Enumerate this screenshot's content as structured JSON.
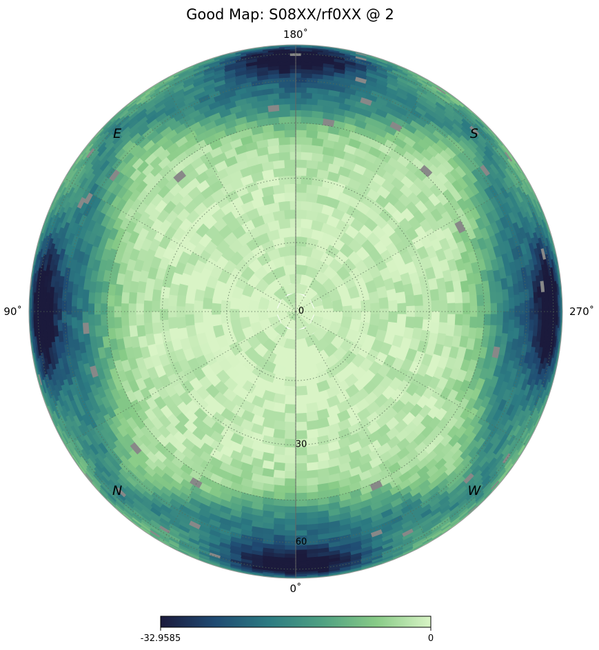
{
  "chart_data": {
    "type": "heatmap",
    "projection": "orthographic-polar",
    "title": "Good Map: S08XX/rf0XX @ 2",
    "angle_tick_labels": [
      {
        "angle_deg": 0,
        "label": "0˚"
      },
      {
        "angle_deg": 90,
        "label": "90˚"
      },
      {
        "angle_deg": 180,
        "label": "180˚"
      },
      {
        "angle_deg": 270,
        "label": "270˚"
      }
    ],
    "direction_labels": [
      {
        "angle_deg": 135,
        "label": "E"
      },
      {
        "angle_deg": 225,
        "label": "S"
      },
      {
        "angle_deg": 315,
        "label": "W"
      },
      {
        "angle_deg": 45,
        "label": "N"
      }
    ],
    "radial_tick_labels": [
      {
        "value": 0,
        "label": "0"
      },
      {
        "value": 30,
        "label": "30"
      },
      {
        "value": 60,
        "label": "60"
      }
    ],
    "zenith_range": [
      0,
      90
    ],
    "grid": true,
    "colormap": "crest",
    "colormap_stops": [
      "#1b1a3c",
      "#1f4a72",
      "#2c7b82",
      "#4fa182",
      "#88cb87",
      "#d9f4c6"
    ],
    "missing_color": "#888888",
    "colorbar": {
      "min": -32.9585,
      "max": 0,
      "min_label": "-32.9585",
      "max_label": "0",
      "placement": "bottom"
    },
    "value_model": {
      "description_units": "value relative to peak (0 = maximum)",
      "centre_value": -1,
      "lobe_angles_deg": [
        0,
        90,
        180,
        270
      ],
      "lobe_zenith_deg": 72,
      "lobe_depth": -32,
      "diagonal_ridge_value": -20
    }
  }
}
